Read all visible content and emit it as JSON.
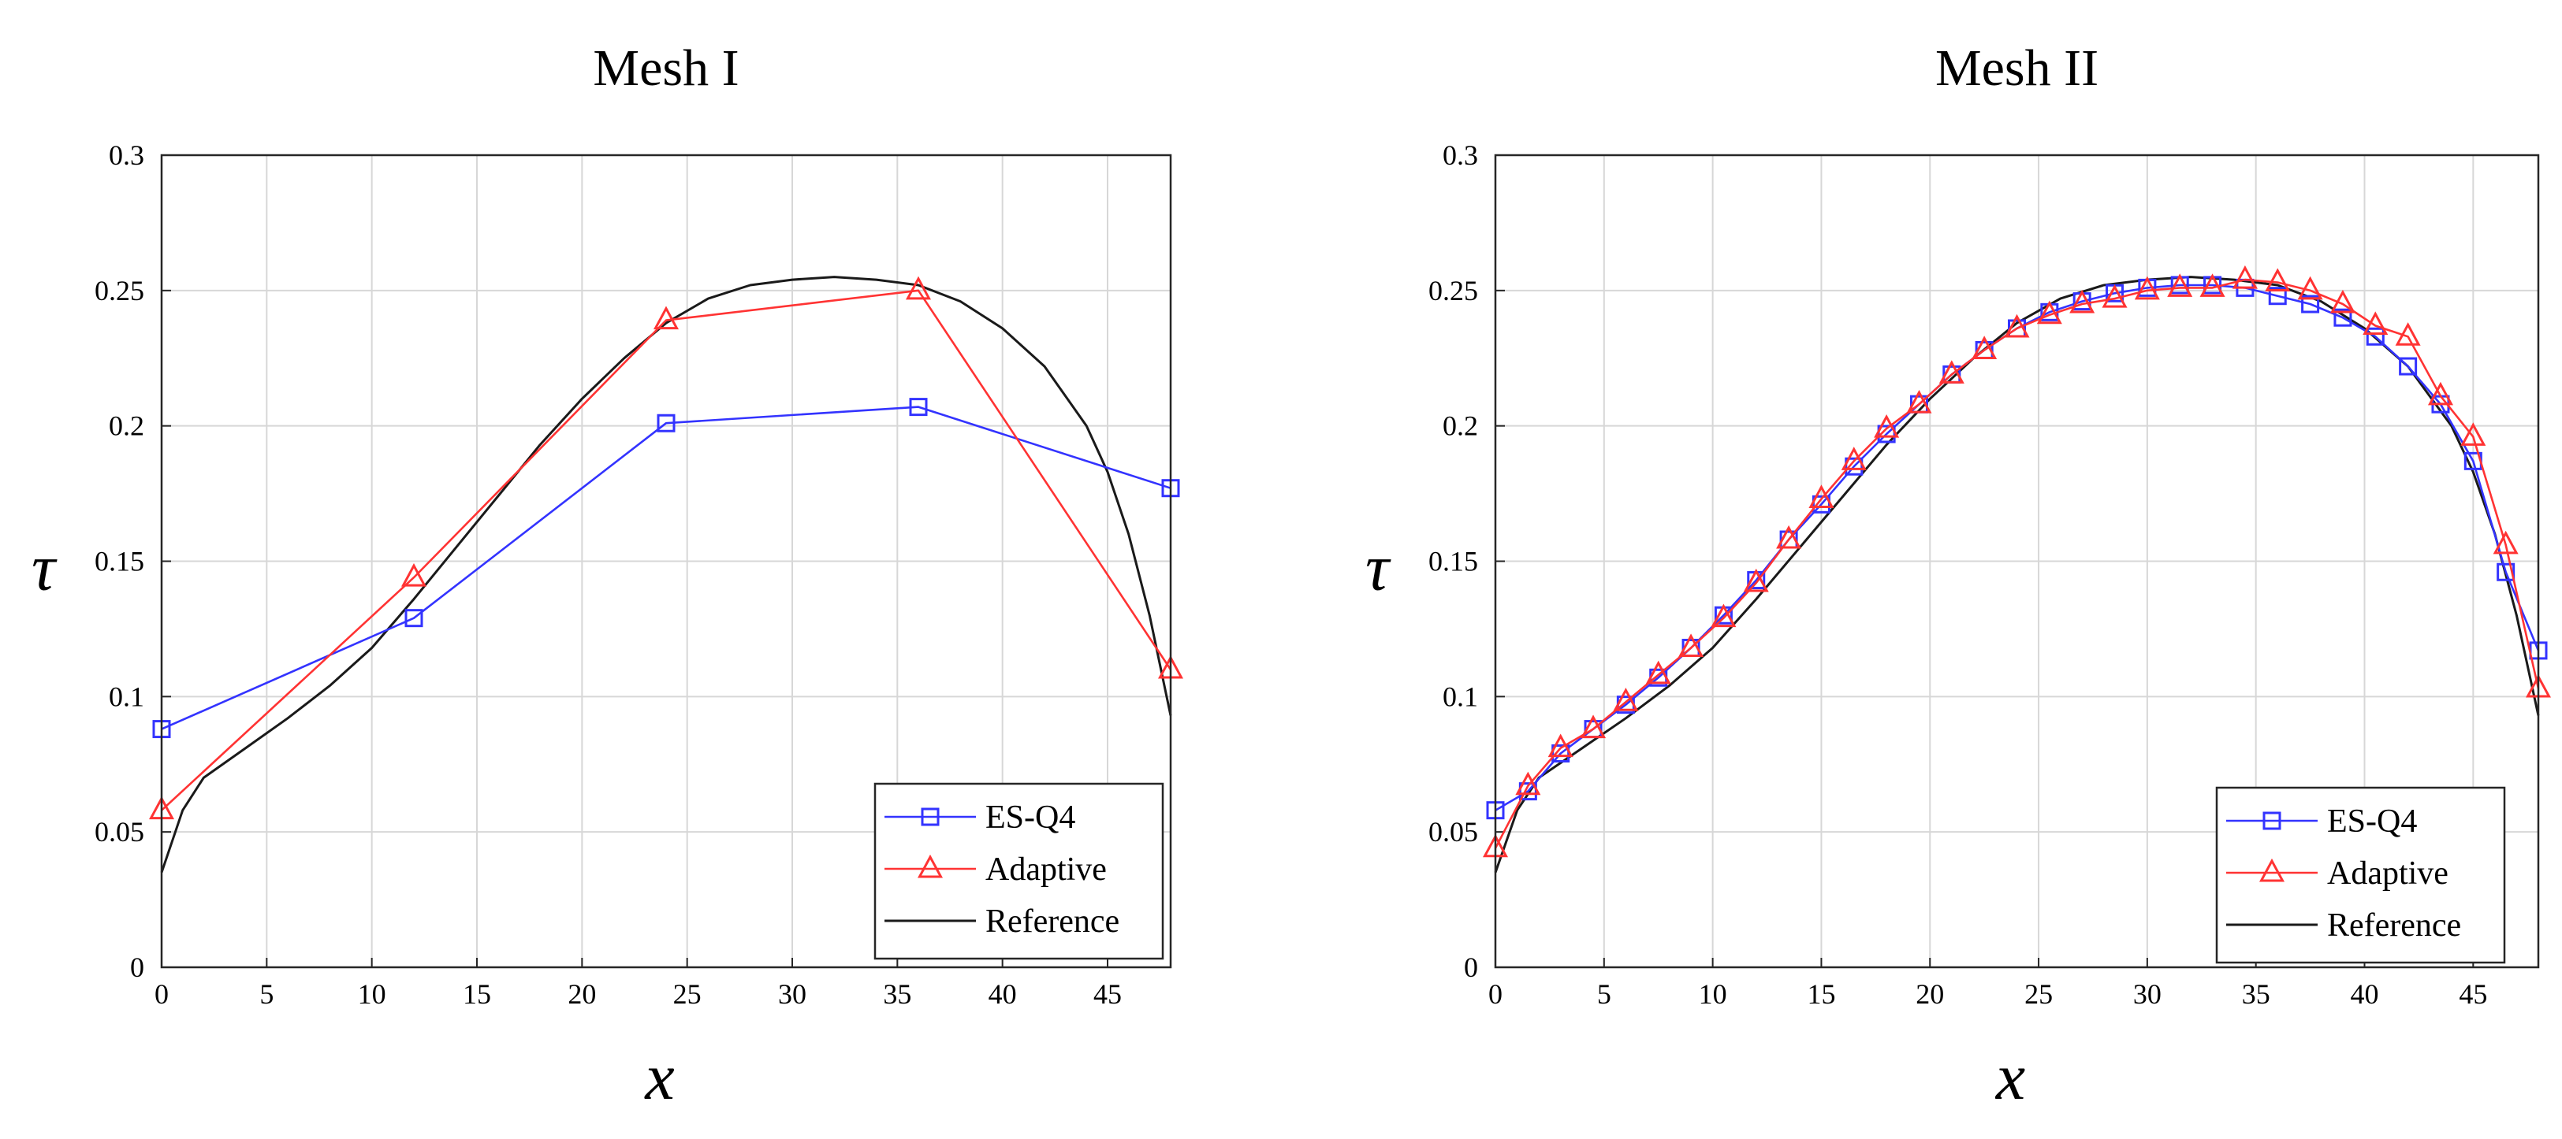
{
  "chart_data": [
    {
      "type": "line",
      "title": "Mesh I",
      "xlabel": "x",
      "ylabel": "τ",
      "xlim": [
        0,
        48
      ],
      "ylim": [
        0,
        0.3
      ],
      "xticks": [
        0,
        5,
        10,
        15,
        20,
        25,
        30,
        35,
        40,
        45
      ],
      "yticks": [
        0,
        0.05,
        0.1,
        0.15,
        0.2,
        0.25,
        0.3
      ],
      "xtick_labels": [
        "0",
        "5",
        "10",
        "15",
        "20",
        "25",
        "30",
        "35",
        "40",
        "45"
      ],
      "ytick_labels": [
        "0",
        "0.05",
        "0.1",
        "0.15",
        "0.2",
        "0.25",
        "0.3"
      ],
      "grid": true,
      "legend_position": "bottom-right",
      "series": [
        {
          "name": "ES-Q4",
          "color": "#3333ff",
          "marker": "square",
          "x": [
            0,
            12,
            24,
            36,
            48
          ],
          "y": [
            0.088,
            0.129,
            0.201,
            0.207,
            0.177
          ]
        },
        {
          "name": "Adaptive",
          "color": "#ff3333",
          "marker": "triangle",
          "x": [
            0,
            12,
            24,
            36,
            48
          ],
          "y": [
            0.058,
            0.144,
            0.239,
            0.25,
            0.11
          ]
        },
        {
          "name": "Reference",
          "color": "#1a1a1a",
          "marker": "none",
          "x": [
            0,
            1,
            2,
            4,
            6,
            8,
            10,
            12,
            14,
            16,
            18,
            20,
            22,
            24,
            26,
            28,
            30,
            32,
            34,
            36,
            38,
            40,
            42,
            44,
            45,
            46,
            47,
            48
          ],
          "y": [
            0.035,
            0.058,
            0.07,
            0.081,
            0.092,
            0.104,
            0.118,
            0.136,
            0.155,
            0.174,
            0.193,
            0.21,
            0.225,
            0.238,
            0.247,
            0.252,
            0.254,
            0.255,
            0.254,
            0.252,
            0.246,
            0.236,
            0.222,
            0.2,
            0.183,
            0.16,
            0.13,
            0.093
          ]
        }
      ]
    },
    {
      "type": "line",
      "title": "Mesh II",
      "xlabel": "x",
      "ylabel": "τ",
      "xlim": [
        0,
        48
      ],
      "ylim": [
        0,
        0.3
      ],
      "xticks": [
        0,
        5,
        10,
        15,
        20,
        25,
        30,
        35,
        40,
        45
      ],
      "yticks": [
        0,
        0.05,
        0.1,
        0.15,
        0.2,
        0.25,
        0.3
      ],
      "xtick_labels": [
        "0",
        "5",
        "10",
        "15",
        "20",
        "25",
        "30",
        "35",
        "40",
        "45"
      ],
      "ytick_labels": [
        "0",
        "0.05",
        "0.1",
        "0.15",
        "0.2",
        "0.25",
        "0.3"
      ],
      "grid": true,
      "legend_position": "bottom-right",
      "series": [
        {
          "name": "ES-Q4",
          "color": "#3333ff",
          "marker": "square",
          "x": [
            0,
            1.5,
            3,
            4.5,
            6,
            7.5,
            9,
            10.5,
            12,
            13.5,
            15,
            16.5,
            18,
            19.5,
            21,
            22.5,
            24,
            25.5,
            27,
            28.5,
            30,
            31.5,
            33,
            34.5,
            36,
            37.5,
            39,
            40.5,
            42,
            43.5,
            45,
            46.5,
            48
          ],
          "y": [
            0.058,
            0.065,
            0.079,
            0.088,
            0.097,
            0.107,
            0.118,
            0.13,
            0.143,
            0.158,
            0.171,
            0.185,
            0.197,
            0.208,
            0.219,
            0.228,
            0.236,
            0.242,
            0.246,
            0.249,
            0.251,
            0.252,
            0.252,
            0.251,
            0.248,
            0.245,
            0.24,
            0.233,
            0.222,
            0.208,
            0.187,
            0.146,
            0.117
          ]
        },
        {
          "name": "Adaptive",
          "color": "#ff3333",
          "marker": "triangle",
          "x": [
            0,
            1.5,
            3,
            4.5,
            6,
            7.5,
            9,
            10.5,
            12,
            13.5,
            15,
            16.5,
            18,
            19.5,
            21,
            22.5,
            24,
            25.5,
            27,
            28.5,
            30,
            31.5,
            33,
            34.5,
            36,
            37.5,
            39,
            40.5,
            42,
            43.5,
            45,
            46.5,
            48
          ],
          "y": [
            0.044,
            0.067,
            0.081,
            0.088,
            0.098,
            0.108,
            0.118,
            0.129,
            0.142,
            0.158,
            0.173,
            0.187,
            0.199,
            0.208,
            0.219,
            0.228,
            0.236,
            0.241,
            0.245,
            0.247,
            0.25,
            0.251,
            0.251,
            0.254,
            0.253,
            0.25,
            0.245,
            0.237,
            0.233,
            0.211,
            0.196,
            0.156,
            0.103
          ]
        },
        {
          "name": "Reference",
          "color": "#1a1a1a",
          "marker": "none",
          "x": [
            0,
            1,
            2,
            4,
            6,
            8,
            10,
            12,
            14,
            16,
            18,
            20,
            22,
            24,
            26,
            28,
            30,
            32,
            34,
            36,
            38,
            40,
            42,
            44,
            45,
            46,
            47,
            48
          ],
          "y": [
            0.035,
            0.058,
            0.07,
            0.081,
            0.092,
            0.104,
            0.118,
            0.136,
            0.155,
            0.174,
            0.193,
            0.21,
            0.225,
            0.238,
            0.247,
            0.252,
            0.254,
            0.255,
            0.254,
            0.252,
            0.246,
            0.236,
            0.222,
            0.2,
            0.183,
            0.16,
            0.13,
            0.093
          ]
        }
      ]
    }
  ]
}
